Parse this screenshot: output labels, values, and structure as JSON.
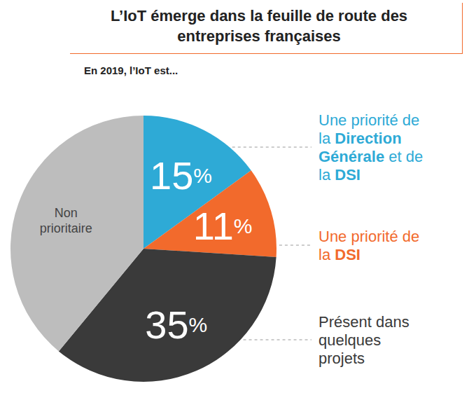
{
  "chart_data": {
    "type": "pie",
    "title": "L’IoT émerge dans la feuille de route des entreprises françaises",
    "subtitle": "En 2019, l’IoT est...",
    "categories": [
      "Une priorité de la Direction Générale et de la DSI",
      "Une priorité de la DSI",
      "Présent dans quelques projets",
      "Non prioritaire"
    ],
    "values": [
      15,
      11,
      35,
      39
    ],
    "value_labels": [
      "15%",
      "11%",
      "35%",
      null
    ],
    "colors": [
      "#2eaad6",
      "#f26a2c",
      "#3a3a3a",
      "#bdbdbd"
    ],
    "data_labels": true
  }
}
